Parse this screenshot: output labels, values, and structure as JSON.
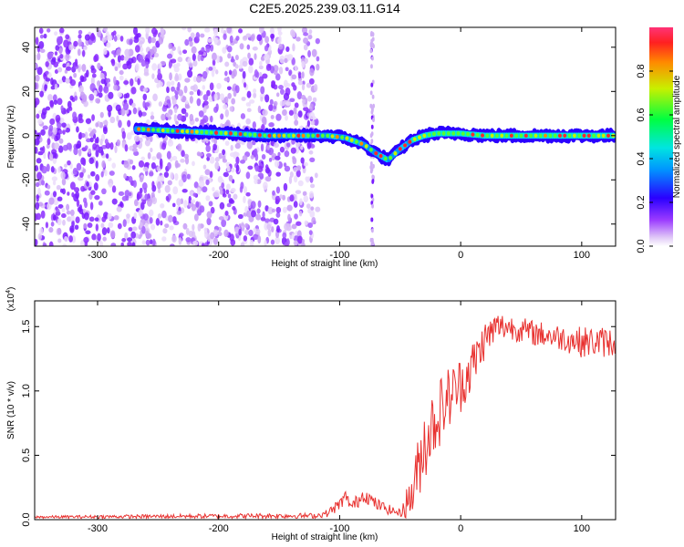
{
  "title": "C2E5.2025.239.03.11.G14",
  "chart_data": [
    {
      "type": "heatmap",
      "name": "spectrogram",
      "xlabel": "Height of straight line (km)",
      "ylabel": "Frequency (Hz)",
      "xlim": [
        -352,
        128
      ],
      "ylim": [
        -50,
        49
      ],
      "xticks": [
        -300,
        -200,
        -100,
        0,
        100
      ],
      "xtick_labels": [
        "-300",
        "-200",
        "-100",
        "0",
        "100"
      ],
      "yticks": [
        -40,
        -20,
        0,
        20,
        40
      ],
      "ytick_labels": [
        "-40",
        "-20",
        "0",
        "20",
        "40"
      ],
      "noise_region_km": [
        -352,
        -118
      ],
      "spurious_line_km": -73,
      "ridge": {
        "x_km": [
          -268,
          -230,
          -190,
          -160,
          -130,
          -110,
          -95,
          -80,
          -70,
          -60,
          -50,
          -40,
          -30,
          -20,
          -10,
          0,
          20,
          60,
          100,
          128
        ],
        "frequency_hz": [
          3,
          2,
          1,
          0,
          0,
          0,
          -1,
          -4,
          -8,
          -11,
          -6,
          -2,
          0,
          1,
          1,
          1,
          0,
          0,
          0,
          0
        ]
      },
      "colorbar": {
        "label": "Normalized spectral amplitude",
        "range": [
          0,
          1
        ],
        "ticks": [
          0.0,
          0.2,
          0.4,
          0.6,
          0.8
        ],
        "tick_labels": [
          "0.0",
          "0.2",
          "0.4",
          "0.6",
          "0.8"
        ]
      }
    },
    {
      "type": "line",
      "name": "snr",
      "xlabel": "Height of straight line (km)",
      "ylabel": "SNR (10 * v/v)",
      "y_multiplier": "(x10⁴)",
      "y_multiplier_base": "(x10",
      "y_multiplier_exp": "4",
      "y_multiplier_close": ")",
      "xlim": [
        -352,
        128
      ],
      "ylim": [
        0,
        1.7
      ],
      "xticks": [
        -300,
        -200,
        -100,
        0,
        100
      ],
      "xtick_labels": [
        "-300",
        "-200",
        "-100",
        "0",
        "100"
      ],
      "yticks": [
        0.0,
        0.5,
        1.0,
        1.5
      ],
      "ytick_labels": [
        "0.0",
        "0.5",
        "1.0",
        "1.5"
      ],
      "color": "#e8312f",
      "series_envelope": {
        "x_km": [
          -352,
          -160,
          -120,
          -110,
          -100,
          -95,
          -90,
          -85,
          -80,
          -70,
          -60,
          -50,
          -40,
          -35,
          -30,
          -20,
          -10,
          0,
          10,
          20,
          30,
          40,
          60,
          80,
          100,
          128
        ],
        "center": [
          0.02,
          0.03,
          0.03,
          0.05,
          0.12,
          0.18,
          0.1,
          0.15,
          0.2,
          0.12,
          0.08,
          0.05,
          0.2,
          0.4,
          0.6,
          0.8,
          0.95,
          1.05,
          1.2,
          1.4,
          1.5,
          1.5,
          1.45,
          1.42,
          1.38,
          1.38
        ],
        "spread": [
          0.01,
          0.02,
          0.02,
          0.03,
          0.05,
          0.05,
          0.04,
          0.06,
          0.06,
          0.05,
          0.04,
          0.03,
          0.2,
          0.25,
          0.3,
          0.28,
          0.25,
          0.22,
          0.2,
          0.15,
          0.12,
          0.1,
          0.1,
          0.1,
          0.12,
          0.12
        ]
      }
    }
  ]
}
